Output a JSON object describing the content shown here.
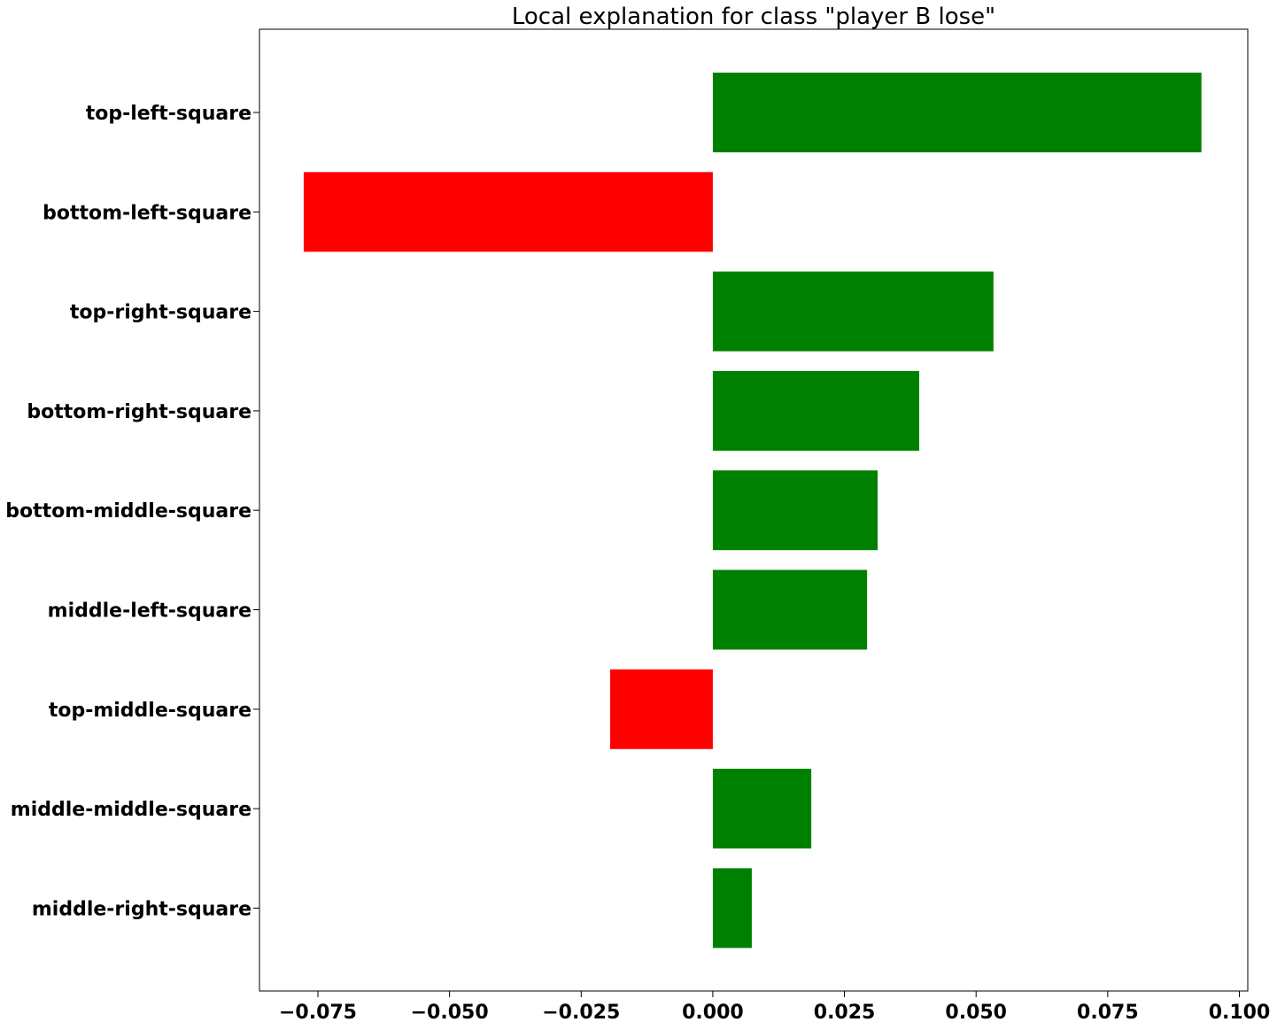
{
  "chart_data": {
    "type": "bar",
    "orientation": "horizontal",
    "title": "Local explanation for class \"player B lose\"",
    "xlabel": "",
    "ylabel": "",
    "categories": [
      "top-left-square",
      "bottom-left-square",
      "top-right-square",
      "bottom-right-square",
      "bottom-middle-square",
      "middle-left-square",
      "top-middle-square",
      "middle-middle-square",
      "middle-right-square"
    ],
    "values": [
      0.0928,
      -0.0777,
      0.0533,
      0.0392,
      0.0313,
      0.0293,
      -0.0195,
      0.0187,
      0.0074
    ],
    "xlim": [
      -0.0861,
      0.1016
    ],
    "xticks": [
      -0.075,
      -0.05,
      -0.025,
      0.0,
      0.025,
      0.05,
      0.075,
      0.1
    ],
    "xtick_labels": [
      "−0.075",
      "−0.050",
      "−0.025",
      "0.000",
      "0.025",
      "0.050",
      "0.075",
      "0.100"
    ],
    "colors": {
      "positive": "#008000",
      "negative": "#ff0000"
    },
    "grid": false,
    "legend": "none"
  }
}
